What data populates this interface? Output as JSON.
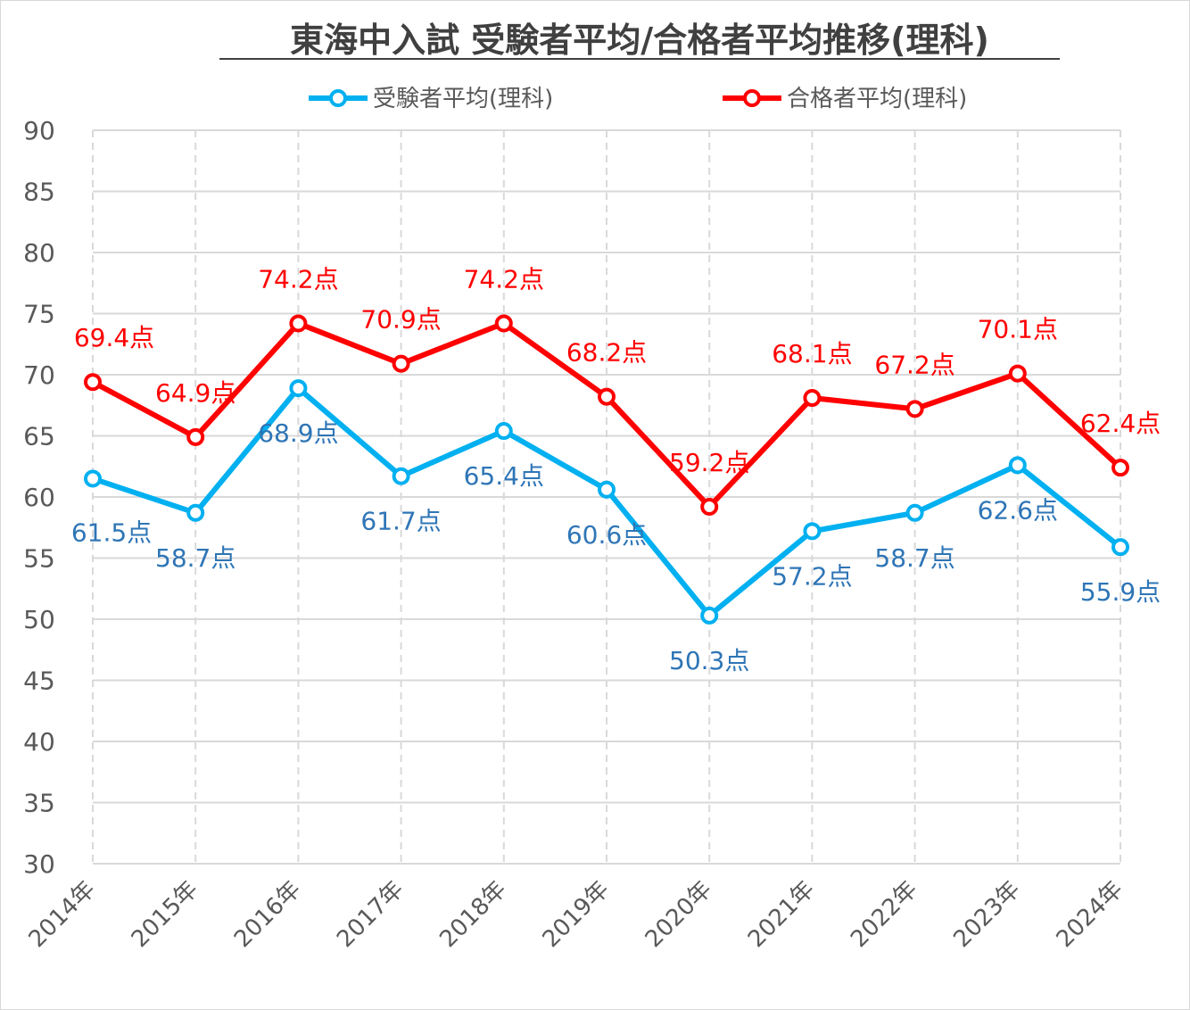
{
  "chart_data": {
    "type": "line",
    "title": "東海中入試 受験者平均/合格者平均推移(理科)",
    "xlabel": "",
    "ylabel": "",
    "categories": [
      "2014年",
      "2015年",
      "2016年",
      "2017年",
      "2018年",
      "2019年",
      "2020年",
      "2021年",
      "2022年",
      "2023年",
      "2024年"
    ],
    "ylim": [
      30,
      90
    ],
    "yticks": [
      30,
      35,
      40,
      45,
      50,
      55,
      60,
      65,
      70,
      75,
      80,
      85,
      90
    ],
    "grid": true,
    "legend_position": "top",
    "label_suffix": "点",
    "series": [
      {
        "name": "受験者平均(理科)",
        "color": "#00b0f0",
        "label_color": "#2e75b6",
        "values": [
          61.5,
          58.7,
          68.9,
          61.7,
          65.4,
          60.6,
          50.3,
          57.2,
          58.7,
          62.6,
          55.9
        ]
      },
      {
        "name": "合格者平均(理科)",
        "color": "#ff0000",
        "label_color": "#ff0000",
        "values": [
          69.4,
          64.9,
          74.2,
          70.9,
          74.2,
          68.2,
          59.2,
          68.1,
          67.2,
          70.1,
          62.4
        ]
      }
    ]
  }
}
